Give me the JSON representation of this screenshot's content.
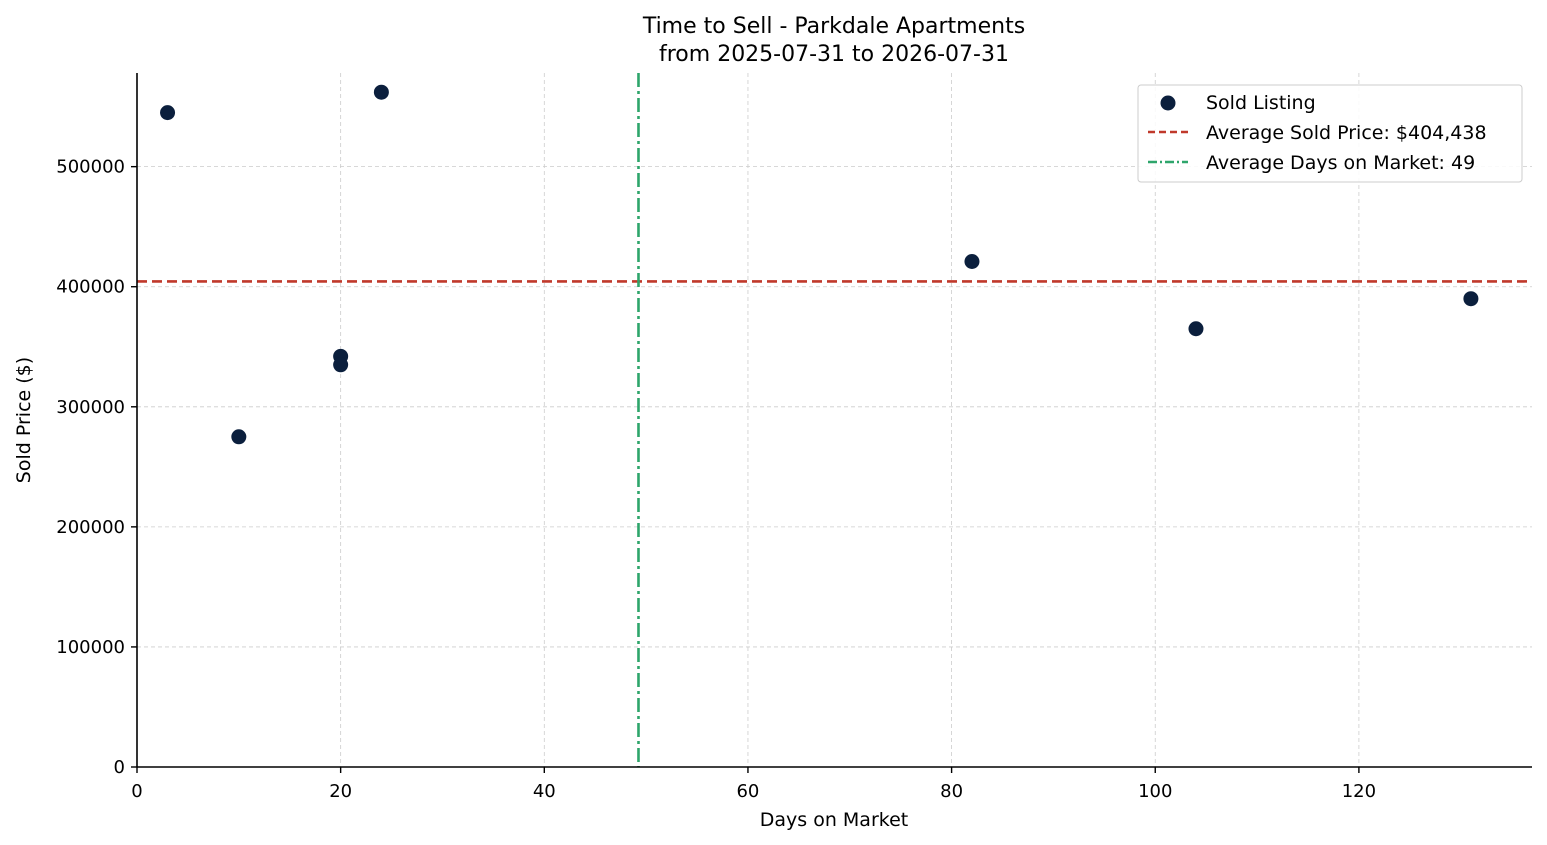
{
  "chart_data": {
    "type": "scatter",
    "title": "Time to Sell - Parkdale Apartments",
    "subtitle": "from 2025-07-31 to 2026-07-31",
    "xlabel": "Days on Market",
    "ylabel": "Sold Price ($)",
    "xlim": [
      0,
      137
    ],
    "ylim": [
      0,
      578000
    ],
    "xticks": [
      0,
      20,
      40,
      60,
      80,
      100,
      120
    ],
    "yticks": [
      0,
      100000,
      200000,
      300000,
      400000,
      500000
    ],
    "grid": true,
    "legend_position": "top-right",
    "series": [
      {
        "name": "Sold Listing",
        "color": "#0b1f3d",
        "points": [
          {
            "x": 3,
            "y": 545000
          },
          {
            "x": 10,
            "y": 275000
          },
          {
            "x": 20,
            "y": 342000
          },
          {
            "x": 20,
            "y": 335000
          },
          {
            "x": 24,
            "y": 562000
          },
          {
            "x": 82,
            "y": 421000
          },
          {
            "x": 104,
            "y": 365000
          },
          {
            "x": 131,
            "y": 390000
          }
        ]
      }
    ],
    "reference_lines": [
      {
        "label": "Average Sold Price: $404,438",
        "orientation": "horizontal",
        "value": 404438,
        "color": "#c0392b",
        "style": "dashed"
      },
      {
        "label": "Average Days on Market: 49",
        "orientation": "vertical",
        "value": 49.25,
        "color": "#2ea56b",
        "style": "dashdot"
      }
    ]
  }
}
